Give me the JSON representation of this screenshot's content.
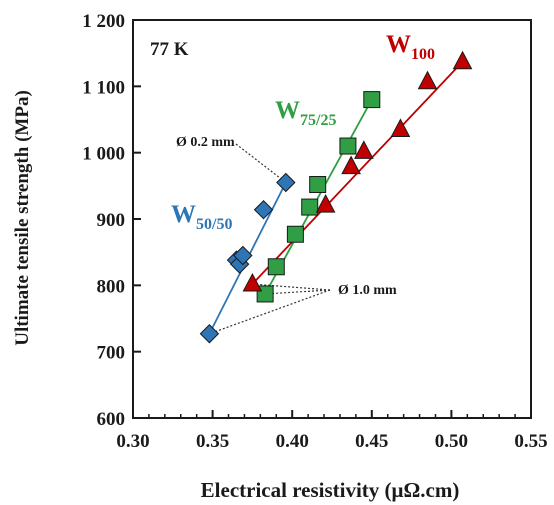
{
  "chart_data": {
    "type": "scatter",
    "xlabel": "Electrical resistivity (μΩ.cm)",
    "ylabel": "Ultimate tensile strength (MPa)",
    "xlim": [
      0.3,
      0.55
    ],
    "ylim": [
      600,
      1200
    ],
    "xticks": [
      0.3,
      0.35,
      0.4,
      0.45,
      0.5,
      0.55
    ],
    "xtick_labels": [
      "0.30",
      "0.35",
      "0.40",
      "0.45",
      "0.50",
      "0.55"
    ],
    "yticks": [
      600,
      700,
      800,
      900,
      1000,
      1100,
      1200
    ],
    "ytick_labels": [
      "600",
      "700",
      "800",
      "900",
      "1 000",
      "1 100",
      "1 200"
    ],
    "grid": false,
    "annotations": {
      "temperature": "77 K",
      "diameter_small": "Ø 0.2 mm",
      "diameter_large": "Ø 1.0 mm"
    },
    "series": [
      {
        "name": "W50/50",
        "label_main": "W",
        "label_sub": "50/50",
        "color": "#2e75b6",
        "marker": "diamond",
        "points": [
          [
            0.348,
            727
          ],
          [
            0.365,
            838
          ],
          [
            0.367,
            832
          ],
          [
            0.369,
            845
          ],
          [
            0.382,
            914
          ],
          [
            0.396,
            955
          ]
        ]
      },
      {
        "name": "W75/25",
        "label_main": "W",
        "label_sub": "75/25",
        "color": "#2f9e44",
        "marker": "square",
        "points": [
          [
            0.383,
            787
          ],
          [
            0.39,
            828
          ],
          [
            0.402,
            877
          ],
          [
            0.411,
            918
          ],
          [
            0.416,
            952
          ],
          [
            0.435,
            1010
          ],
          [
            0.45,
            1080
          ]
        ]
      },
      {
        "name": "W100",
        "label_main": "W",
        "label_sub": "100",
        "color": "#c00000",
        "marker": "triangle",
        "points": [
          [
            0.375,
            802
          ],
          [
            0.421,
            921
          ],
          [
            0.437,
            979
          ],
          [
            0.445,
            1002
          ],
          [
            0.468,
            1035
          ],
          [
            0.485,
            1107
          ],
          [
            0.507,
            1137
          ]
        ]
      }
    ],
    "fit_lines": [
      {
        "series": "W50/50",
        "from": [
          0.348,
          727
        ],
        "to": [
          0.396,
          955
        ]
      },
      {
        "series": "W75/25",
        "from": [
          0.383,
          787
        ],
        "to": [
          0.45,
          1080
        ]
      },
      {
        "series": "W100",
        "from": [
          0.375,
          802
        ],
        "to": [
          0.507,
          1137
        ]
      }
    ]
  }
}
